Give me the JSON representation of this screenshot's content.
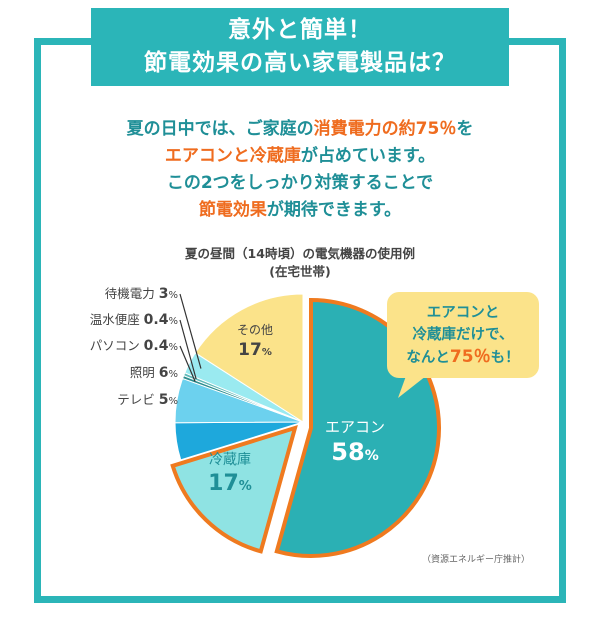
{
  "banner": {
    "line1": "意外と簡単！",
    "line2": "節電効果の高い家電製品は？"
  },
  "intro": {
    "l1a": "夏の日中では、ご家庭の",
    "l1b": "消費電力の約75％",
    "l1c": "を",
    "l2a": "エアコンと冷蔵庫",
    "l2b": "が占めています。",
    "l3": "この2つをしっかり対策することで",
    "l4a": "節電効果",
    "l4b": "が期待できます。"
  },
  "chart_data": {
    "type": "pie",
    "title": "夏の昼間（14時頃）の電気機器の使用例",
    "subtitle": "(在宅世帯)",
    "slices": [
      {
        "label": "エアコン",
        "value": 58,
        "display": "58",
        "unit": "%",
        "color": "#2bb0b4"
      },
      {
        "label": "冷蔵庫",
        "value": 17,
        "display": "17",
        "unit": "%",
        "color": "#8fe3e3"
      },
      {
        "label": "テレビ",
        "value": 5,
        "display": "5",
        "unit": "%",
        "color": "#1ea8dc"
      },
      {
        "label": "照明",
        "value": 6,
        "display": "6",
        "unit": "%",
        "color": "#6cd1ee"
      },
      {
        "label": "パソコン",
        "value": 0.4,
        "display": "0.4",
        "unit": "%",
        "color": "#2d8e8f"
      },
      {
        "label": "温水便座",
        "value": 0.4,
        "display": "0.4",
        "unit": "%",
        "color": "#5fb9b8"
      },
      {
        "label": "待機電力",
        "value": 3,
        "display": "3",
        "unit": "%",
        "color": "#9aeaf0"
      },
      {
        "label": "その他",
        "value": 17,
        "display": "17",
        "unit": "%",
        "color": "#fbe38a"
      }
    ],
    "highlight_color": "#ef7a1f"
  },
  "callout": {
    "l1": "エアコンと",
    "l2": "冷蔵庫だけで、",
    "l3a": "なんと",
    "l3b": "75％",
    "l3c": "も！"
  },
  "source": "（資源エネルギー庁推計）"
}
